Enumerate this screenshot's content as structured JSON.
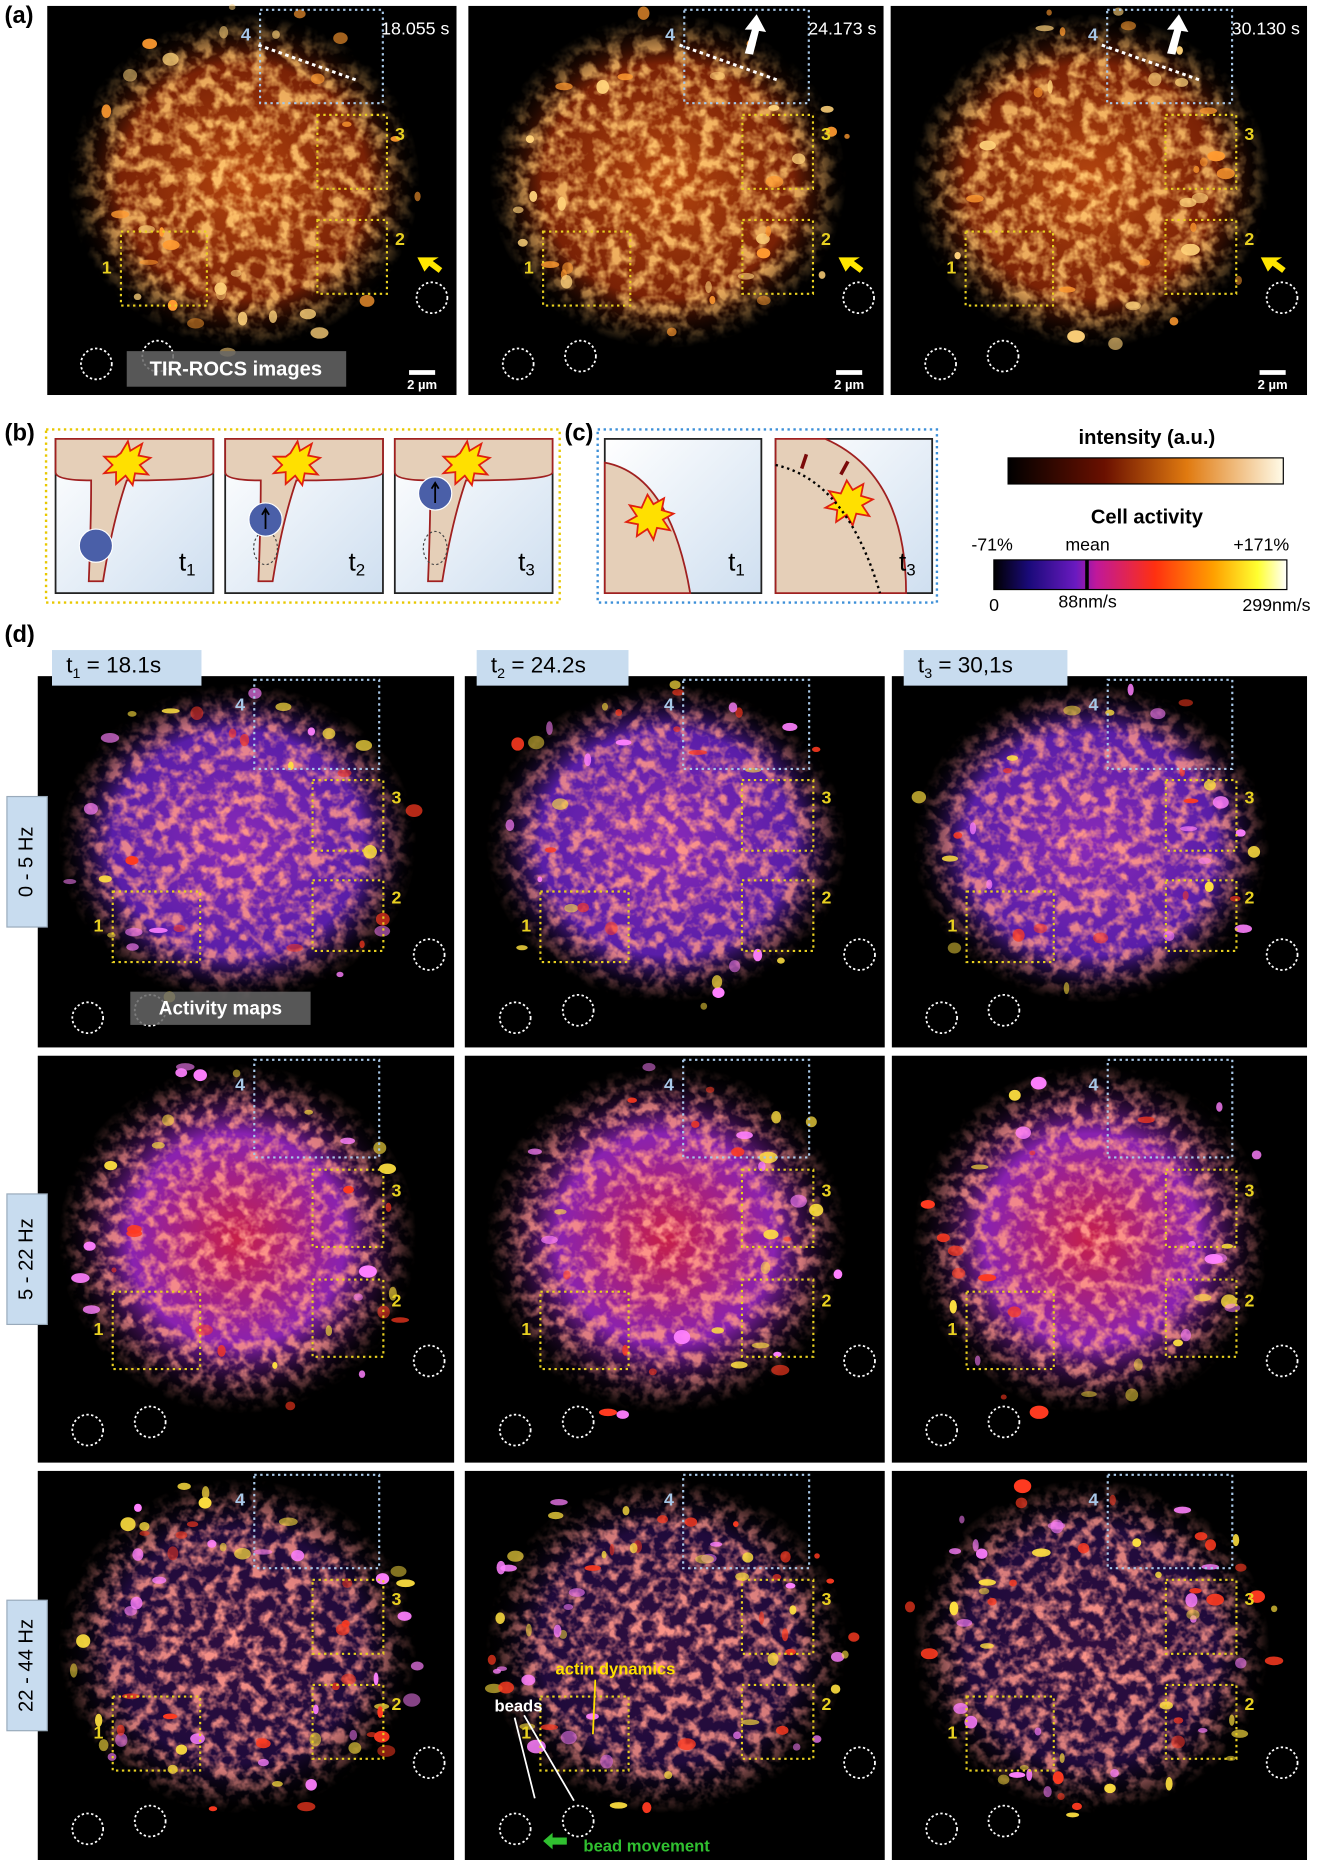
{
  "panel_a": {
    "label": "(a)",
    "times": [
      "18.055 s",
      "24.173 s",
      "30.130 s"
    ],
    "caption": "TIR-ROCS images",
    "scale_bar": "2 µm"
  },
  "box_labels": [
    "1",
    "2",
    "3",
    "4"
  ],
  "panel_b": {
    "label": "(b)",
    "steps": [
      {
        "t": "t",
        "sub": "1"
      },
      {
        "t": "t",
        "sub": "2"
      },
      {
        "t": "t",
        "sub": "3"
      }
    ]
  },
  "panel_c": {
    "label": "(c)",
    "steps": [
      {
        "t": "t",
        "sub": "1"
      },
      {
        "t": "t",
        "sub": "3"
      }
    ]
  },
  "intensity_bar": {
    "title": "intensity (a.u.)"
  },
  "activity_bar": {
    "title": "Cell activity",
    "top_labels": [
      "-71%",
      "mean",
      "+171%"
    ],
    "bottom_labels": [
      "0",
      "88nm/s",
      "299nm/s"
    ]
  },
  "panel_d": {
    "label": "(d)",
    "headers": [
      {
        "t": "t",
        "sub": "1",
        "rest": " = 18.1s"
      },
      {
        "t": "t",
        "sub": "2",
        "rest": " = 24.2s"
      },
      {
        "t": "t",
        "sub": "3",
        "rest": " = 30,1s"
      }
    ],
    "rows": [
      "0 - 5 Hz",
      "5 - 22 Hz",
      "22 - 44 Hz"
    ],
    "caption": "Activity maps",
    "annotations": {
      "actin": "actin dynamics",
      "beads": "beads",
      "movement": "bead movement"
    }
  }
}
